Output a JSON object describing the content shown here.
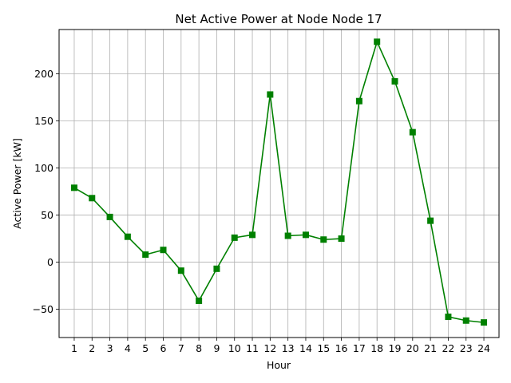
{
  "chart_data": {
    "type": "line",
    "title": "Net Active Power at Node Node 17",
    "xlabel": "Hour",
    "ylabel": "Active Power [kW]",
    "x": [
      1,
      2,
      3,
      4,
      5,
      6,
      7,
      8,
      9,
      10,
      11,
      12,
      13,
      14,
      15,
      16,
      17,
      18,
      19,
      20,
      21,
      22,
      23,
      24
    ],
    "series": [
      {
        "values": [
          79,
          68,
          48,
          27,
          8,
          13,
          -9,
          -41,
          -7,
          26,
          29,
          178,
          28,
          29,
          24,
          25,
          171,
          234,
          192,
          138,
          44,
          -58,
          -62,
          -64
        ],
        "color": "#008000",
        "marker": "square"
      }
    ],
    "xlim": [
      0.15,
      24.85
    ],
    "ylim": [
      -80,
      247
    ],
    "yticks": [
      -50,
      0,
      50,
      100,
      150,
      200
    ],
    "grid": true,
    "colors": {
      "grid": "#b0b0b0",
      "axis": "#000000",
      "line": "#008000"
    }
  }
}
